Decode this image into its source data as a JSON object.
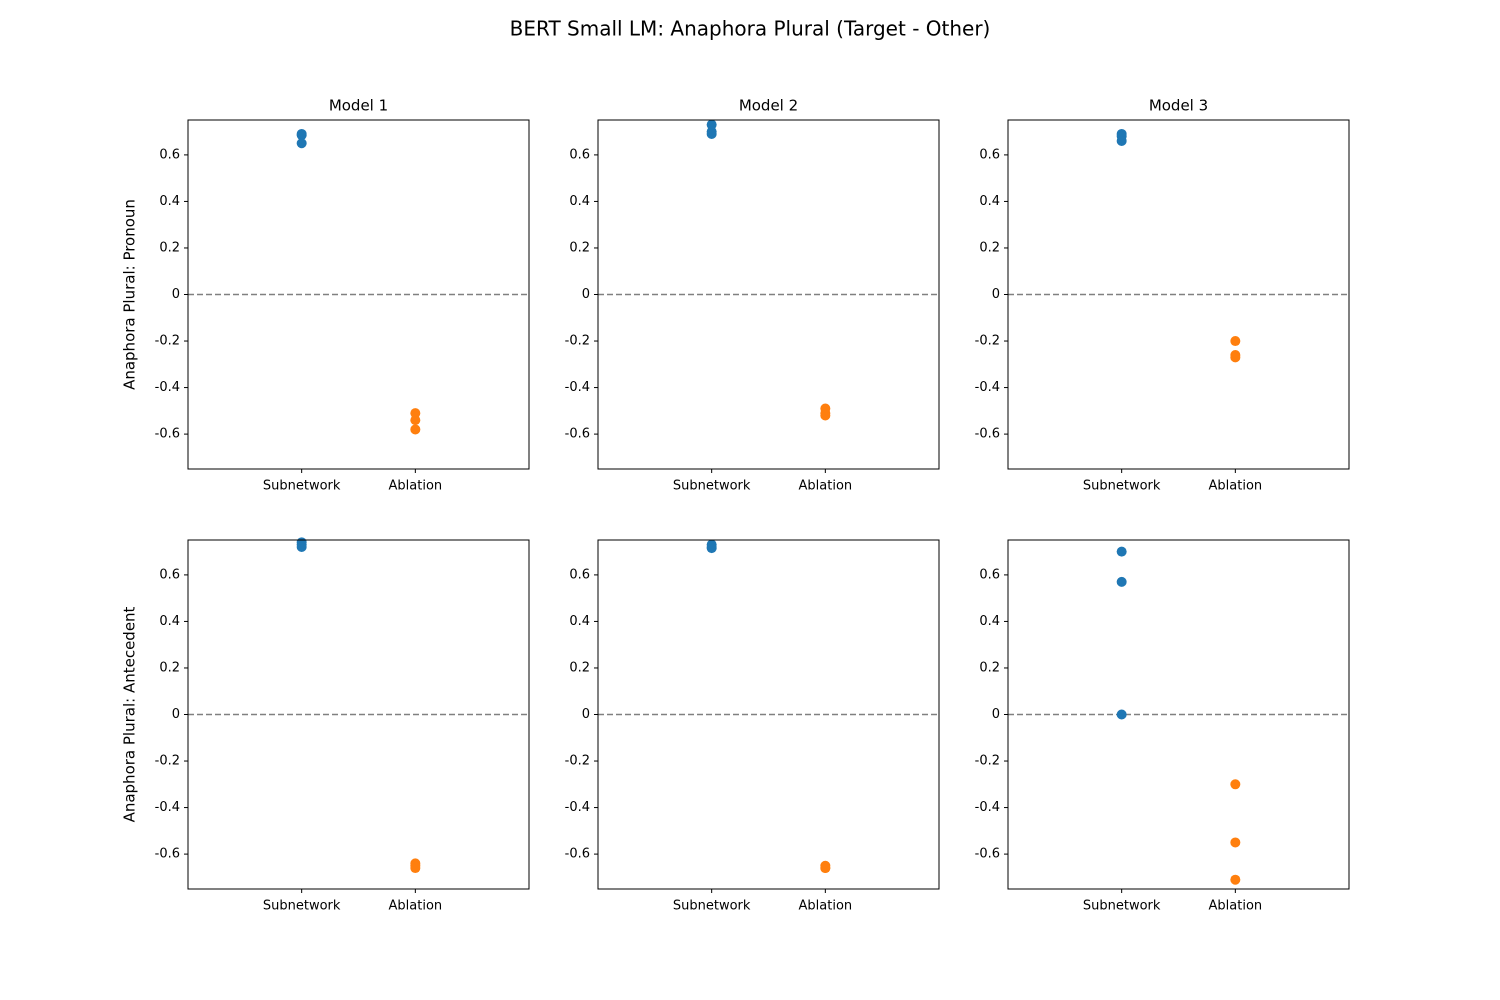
{
  "title": "BERT Small LM: Anaphora Plural (Target - Other)",
  "chart_data": [
    {
      "type": "scatter",
      "title": "Model 1",
      "ylabel": "Anaphora Plural: Pronoun",
      "categories": [
        "Subnetwork",
        "Ablation"
      ],
      "colors": [
        "#1f77b4",
        "#ff7f0e"
      ],
      "values": [
        [
          0.69,
          0.685,
          0.65
        ],
        [
          -0.51,
          -0.54,
          -0.58
        ]
      ],
      "ylim": [
        -0.75,
        0.75
      ],
      "yticks": [
        -0.6,
        -0.4,
        -0.2,
        0.0,
        0.2,
        0.4,
        0.6
      ],
      "reference_line": {
        "value": 0,
        "color": "#808080",
        "style": "dashed"
      }
    },
    {
      "type": "scatter",
      "title": "Model 2",
      "categories": [
        "Subnetwork",
        "Ablation"
      ],
      "colors": [
        "#1f77b4",
        "#ff7f0e"
      ],
      "values": [
        [
          0.73,
          0.7,
          0.69
        ],
        [
          -0.49,
          -0.51,
          -0.52
        ]
      ],
      "ylim": [
        -0.75,
        0.75
      ],
      "yticks": [
        -0.6,
        -0.4,
        -0.2,
        0.0,
        0.2,
        0.4,
        0.6
      ],
      "reference_line": {
        "value": 0,
        "color": "#808080",
        "style": "dashed"
      }
    },
    {
      "type": "scatter",
      "title": "Model 3",
      "categories": [
        "Subnetwork",
        "Ablation"
      ],
      "colors": [
        "#1f77b4",
        "#ff7f0e"
      ],
      "values": [
        [
          0.69,
          0.68,
          0.66
        ],
        [
          -0.2,
          -0.26,
          -0.27
        ]
      ],
      "ylim": [
        -0.75,
        0.75
      ],
      "yticks": [
        -0.6,
        -0.4,
        -0.2,
        0.0,
        0.2,
        0.4,
        0.6
      ],
      "reference_line": {
        "value": 0,
        "color": "#808080",
        "style": "dashed"
      }
    },
    {
      "type": "scatter",
      "ylabel": "Anaphora Plural: Antecedent",
      "categories": [
        "Subnetwork",
        "Ablation"
      ],
      "colors": [
        "#1f77b4",
        "#ff7f0e"
      ],
      "values": [
        [
          0.74,
          0.73,
          0.72
        ],
        [
          -0.64,
          -0.65,
          -0.66
        ]
      ],
      "ylim": [
        -0.75,
        0.75
      ],
      "yticks": [
        -0.6,
        -0.4,
        -0.2,
        0.0,
        0.2,
        0.4,
        0.6
      ],
      "reference_line": {
        "value": 0,
        "color": "#808080",
        "style": "dashed"
      }
    },
    {
      "type": "scatter",
      "categories": [
        "Subnetwork",
        "Ablation"
      ],
      "colors": [
        "#1f77b4",
        "#ff7f0e"
      ],
      "values": [
        [
          0.73,
          0.72,
          0.715
        ],
        [
          -0.65,
          -0.66,
          -0.66
        ]
      ],
      "ylim": [
        -0.75,
        0.75
      ],
      "yticks": [
        -0.6,
        -0.4,
        -0.2,
        0.0,
        0.2,
        0.4,
        0.6
      ],
      "reference_line": {
        "value": 0,
        "color": "#808080",
        "style": "dashed"
      }
    },
    {
      "type": "scatter",
      "categories": [
        "Subnetwork",
        "Ablation"
      ],
      "colors": [
        "#1f77b4",
        "#ff7f0e"
      ],
      "values": [
        [
          0.7,
          0.57,
          0.0
        ],
        [
          -0.3,
          -0.55,
          -0.71
        ]
      ],
      "ylim": [
        -0.75,
        0.75
      ],
      "yticks": [
        -0.6,
        -0.4,
        -0.2,
        0.0,
        0.2,
        0.4,
        0.6
      ],
      "reference_line": {
        "value": 0,
        "color": "#808080",
        "style": "dashed"
      }
    }
  ]
}
